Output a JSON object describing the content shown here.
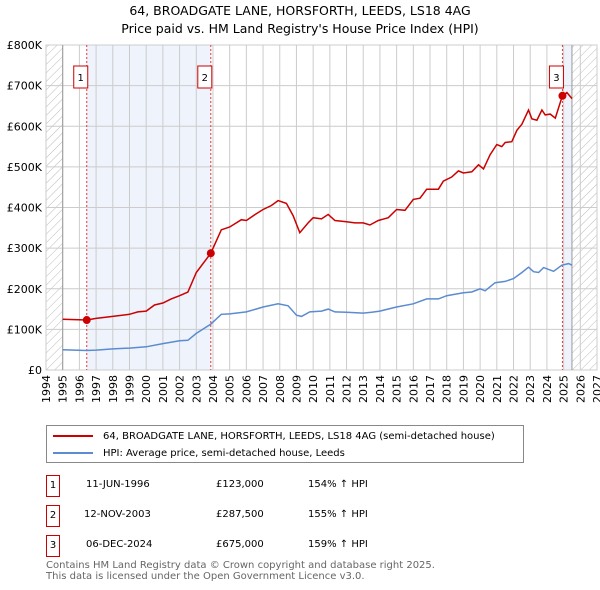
{
  "chart_data": {
    "type": "line",
    "title": "64, BROADGATE LANE, HORSFORTH, LEEDS, LS18 4AG",
    "subtitle": "Price paid vs. HM Land Registry's House Price Index (HPI)",
    "xlim": [
      1994,
      2027
    ],
    "ylim": [
      0,
      800000
    ],
    "x_ticks": [
      "1994",
      "1995",
      "1996",
      "1997",
      "1998",
      "1999",
      "2000",
      "2001",
      "2002",
      "2003",
      "2004",
      "2005",
      "2006",
      "2007",
      "2008",
      "2009",
      "2010",
      "2011",
      "2012",
      "2013",
      "2014",
      "2015",
      "2016",
      "2017",
      "2018",
      "2019",
      "2020",
      "2021",
      "2022",
      "2023",
      "2024",
      "2025",
      "2026",
      "2027"
    ],
    "y_ticks": [
      {
        "v": 0,
        "l": "£0"
      },
      {
        "v": 100000,
        "l": "£100K"
      },
      {
        "v": 200000,
        "l": "£200K"
      },
      {
        "v": 300000,
        "l": "£300K"
      },
      {
        "v": 400000,
        "l": "£400K"
      },
      {
        "v": 500000,
        "l": "£500K"
      },
      {
        "v": 600000,
        "l": "£600K"
      },
      {
        "v": 700000,
        "l": "£700K"
      },
      {
        "v": 800000,
        "l": "£800K"
      }
    ],
    "grid": true,
    "data_end": 2025.5,
    "series": [
      {
        "name": "64, BROADGATE LANE, HORSFORTH, LEEDS, LS18 4AG (semi-detached house)",
        "color": "#cc0000",
        "x": [
          1995,
          1996.44,
          1997,
          1998,
          1999,
          1999.5,
          2000,
          2000.5,
          2001,
          2001.5,
          2002,
          2002.5,
          2003,
          2003.87,
          2004.5,
          2005,
          2005.7,
          2006,
          2006.5,
          2007,
          2007.5,
          2007.9,
          2008.4,
          2008.8,
          2009.2,
          2009.7,
          2010,
          2010.5,
          2010.9,
          2011.3,
          2012,
          2012.5,
          2013,
          2013.4,
          2013.9,
          2014.5,
          2015,
          2015.5,
          2016,
          2016.4,
          2016.8,
          2017.5,
          2017.8,
          2018.3,
          2018.7,
          2019,
          2019.5,
          2019.9,
          2020.2,
          2020.6,
          2021,
          2021.3,
          2021.5,
          2021.9,
          2022.2,
          2022.5,
          2022.9,
          2023.1,
          2023.4,
          2023.7,
          2023.9,
          2024.2,
          2024.5,
          2024.93,
          2025.2,
          2025.5
        ],
        "y": [
          125000,
          123000,
          127000,
          132000,
          137000,
          143000,
          145000,
          160000,
          165000,
          175000,
          183000,
          192000,
          240000,
          287500,
          345000,
          352000,
          370000,
          368000,
          382000,
          395000,
          405000,
          417000,
          410000,
          380000,
          338000,
          362000,
          375000,
          372000,
          383000,
          368000,
          365000,
          362000,
          362000,
          357000,
          368000,
          375000,
          395000,
          393000,
          420000,
          423000,
          445000,
          445000,
          465000,
          475000,
          490000,
          485000,
          488000,
          505000,
          495000,
          530000,
          555000,
          550000,
          560000,
          562000,
          590000,
          605000,
          640000,
          618000,
          615000,
          640000,
          628000,
          630000,
          620000,
          675000,
          683000,
          668000
        ]
      },
      {
        "name": "HPI: Average price, semi-detached house, Leeds",
        "color": "#5b8bd0",
        "x": [
          1995,
          1996.4,
          1997,
          1998,
          1999,
          2000,
          2001,
          2002,
          2002.5,
          2003,
          2003.87,
          2004.5,
          2005,
          2006,
          2007,
          2007.9,
          2008.5,
          2009,
          2009.3,
          2009.8,
          2010.5,
          2010.9,
          2011.3,
          2012,
          2013,
          2013.5,
          2014,
          2015,
          2016,
          2016.8,
          2017.5,
          2018,
          2019,
          2019.5,
          2020,
          2020.3,
          2020.9,
          2021.5,
          2022,
          2022.5,
          2022.9,
          2023.2,
          2023.5,
          2023.8,
          2024.4,
          2024.9,
          2025.3,
          2025.5
        ],
        "y": [
          50000,
          48000,
          49000,
          52000,
          54000,
          57000,
          65000,
          72000,
          73000,
          90000,
          113000,
          137000,
          138000,
          143000,
          155000,
          163000,
          158000,
          135000,
          132000,
          143000,
          145000,
          150000,
          143000,
          142000,
          140000,
          142000,
          145000,
          155000,
          163000,
          175000,
          175000,
          183000,
          190000,
          192000,
          200000,
          195000,
          215000,
          218000,
          225000,
          240000,
          253000,
          242000,
          240000,
          252000,
          243000,
          258000,
          262000,
          258000
        ]
      }
    ],
    "sales": [
      {
        "label": "1",
        "x": 1996.44,
        "date": "11-JUN-1996",
        "price": 123000,
        "price_text": "£123,000",
        "hpi": "154% ↑ HPI"
      },
      {
        "label": "2",
        "x": 2003.87,
        "date": "12-NOV-2003",
        "price": 287500,
        "price_text": "£287,500",
        "hpi": "155% ↑ HPI"
      },
      {
        "label": "3",
        "x": 2024.93,
        "date": "06-DEC-2024",
        "price": 675000,
        "price_text": "£675,000",
        "hpi": "159% ↑ HPI"
      }
    ],
    "legend": "bottom"
  },
  "footer": {
    "line1": "Contains HM Land Registry data © Crown copyright and database right 2025.",
    "line2": "This data is licensed under the Open Government Licence v3.0."
  }
}
